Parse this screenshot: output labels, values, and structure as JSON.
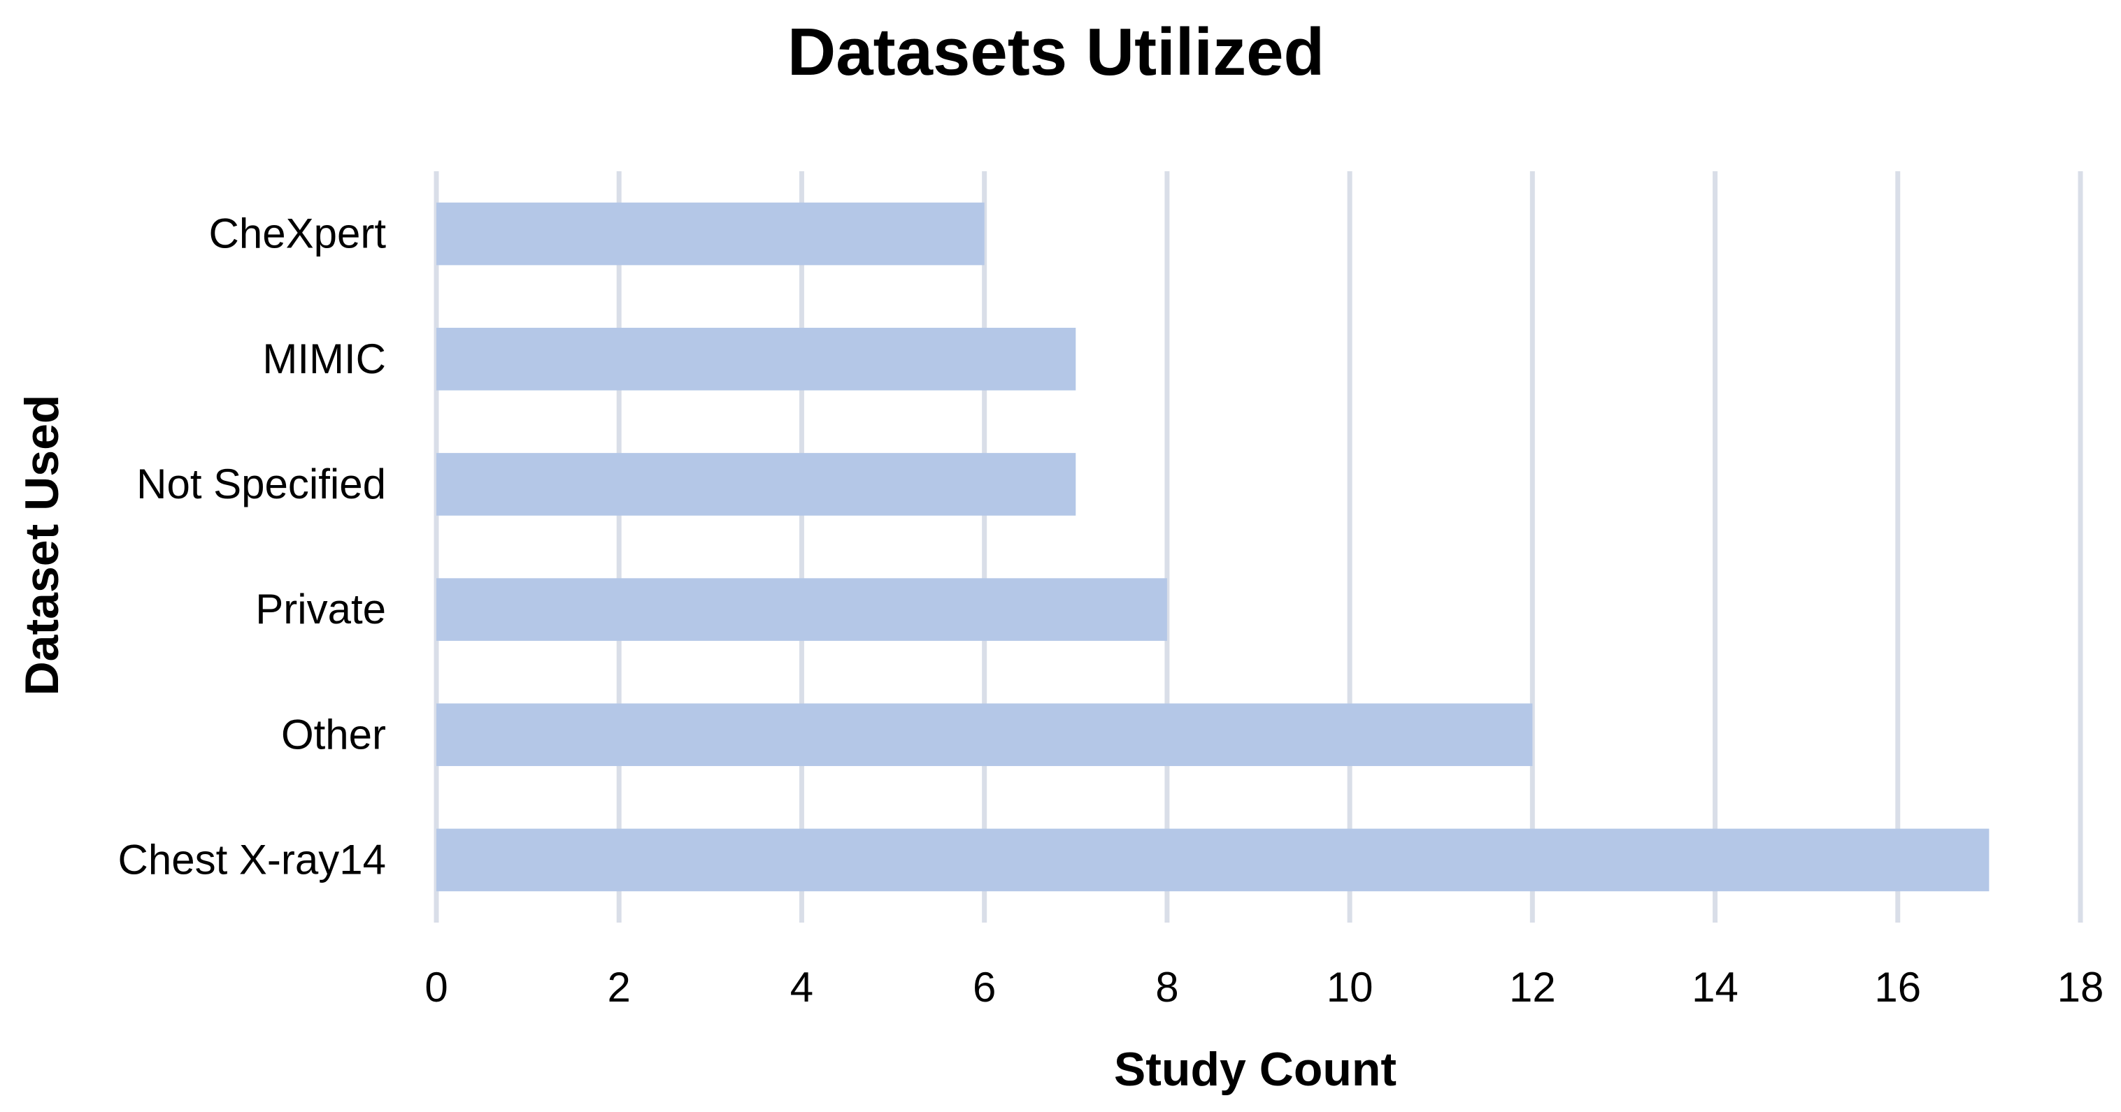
{
  "chart_data": {
    "type": "bar",
    "orientation": "horizontal",
    "title": "Datasets Utilized",
    "xlabel": "Study Count",
    "ylabel": "Dataset Used",
    "categories": [
      "CheXpert",
      "MIMIC",
      "Not Specified",
      "Private",
      "Other",
      "Chest X-ray14"
    ],
    "values": [
      6,
      7,
      7,
      8,
      12,
      17
    ],
    "xlim": [
      0,
      18
    ],
    "xticks": [
      "0",
      "2",
      "4",
      "6",
      "8",
      "10",
      "12",
      "14",
      "16",
      "18"
    ],
    "grid": true,
    "legend": "none",
    "colors": {
      "bar": "#b4c7e7",
      "grid": "#d9dee8",
      "text": "#000000"
    }
  }
}
